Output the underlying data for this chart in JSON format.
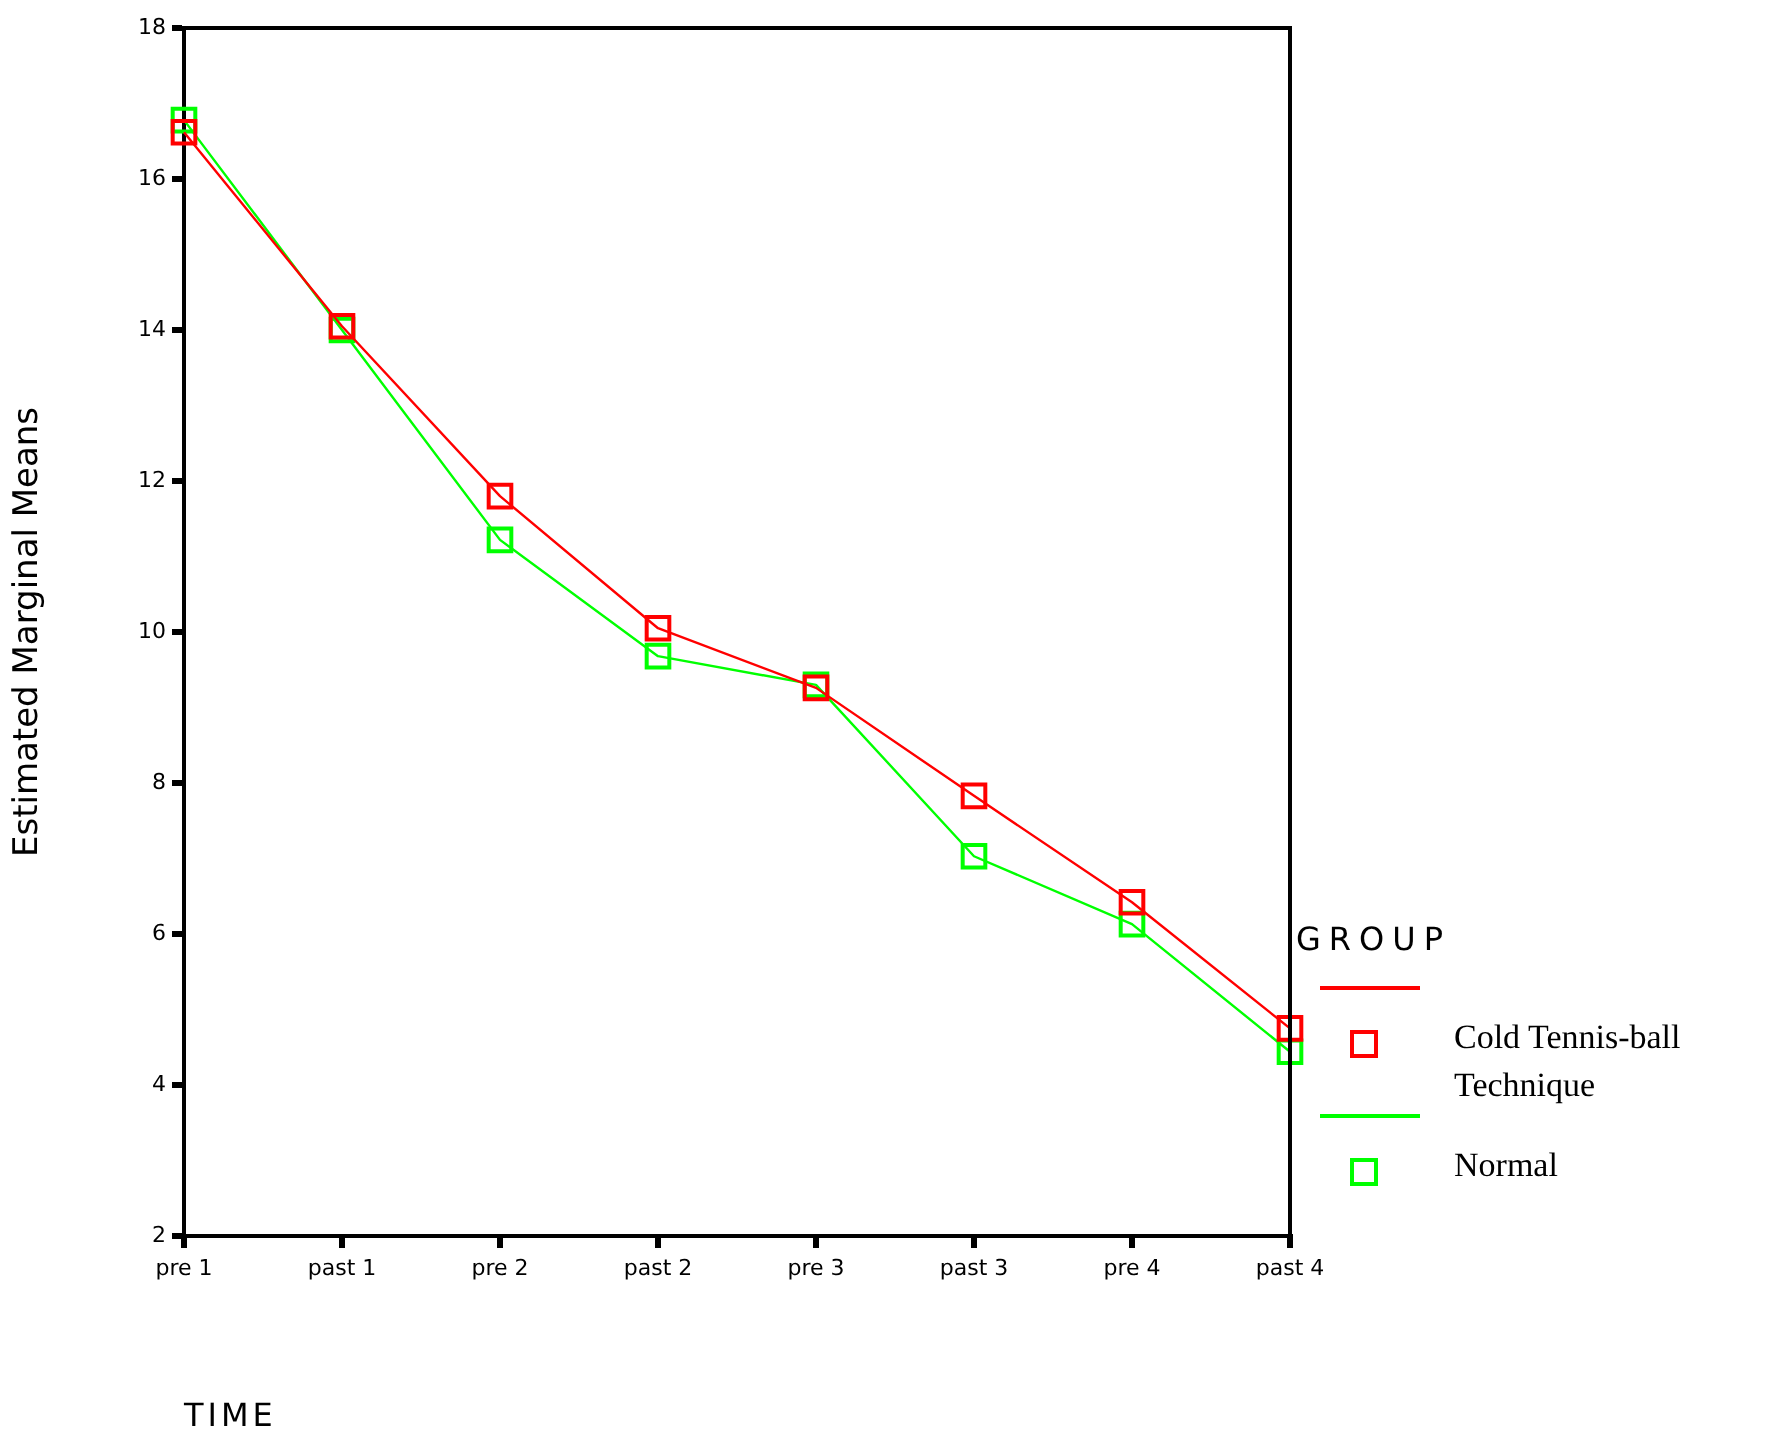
{
  "chart_data": {
    "type": "line",
    "xlabel": "TIME",
    "ylabel": "Estimated Marginal Means",
    "legend_title": "GROUP",
    "legend": "right",
    "grid": false,
    "marker": "square",
    "line_style": "solid",
    "categories": [
      "pre 1",
      "past 1",
      "pre 2",
      "past 2",
      "pre 3",
      "past 3",
      "pre 4",
      "past 4"
    ],
    "ylim": [
      2,
      18
    ],
    "yticks": [
      2,
      4,
      6,
      8,
      10,
      12,
      14,
      16,
      18
    ],
    "series": [
      {
        "name": "Cold Tennis-ball Technique",
        "color": "#ff0000",
        "values": [
          16.62,
          14.05,
          11.8,
          10.05,
          9.26,
          7.83,
          6.42,
          4.75
        ]
      },
      {
        "name": "Normal",
        "color": "#00ff00",
        "values": [
          16.78,
          14.0,
          11.22,
          9.68,
          9.3,
          7.03,
          6.13,
          4.44
        ]
      }
    ]
  }
}
